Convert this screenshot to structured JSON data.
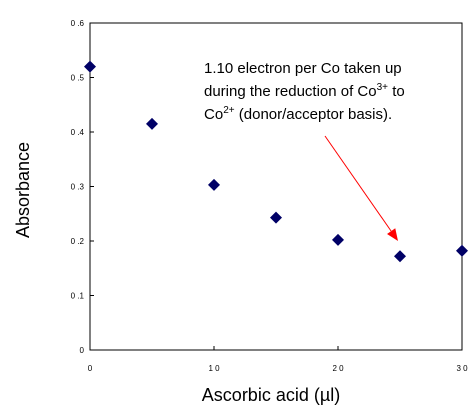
{
  "chart_data": {
    "type": "scatter",
    "title": "",
    "xlabel": "Ascorbic acid (µl)",
    "ylabel": "Absorbance",
    "xlim": [
      0,
      30
    ],
    "ylim": [
      0,
      0.6
    ],
    "x_ticks": [
      0,
      10,
      20,
      30
    ],
    "x_tick_labels": [
      "0",
      "1 0",
      "2 0",
      "3 0"
    ],
    "y_ticks": [
      0,
      0.1,
      0.2,
      0.3,
      0.4,
      0.5,
      0.6
    ],
    "y_tick_labels": [
      "0",
      "0 .1",
      "0 .2",
      "0 .3",
      "0 .4",
      "0 .5",
      "0 .6"
    ],
    "grid": false,
    "legend": "none",
    "marker": "diamond",
    "marker_color": "#000066",
    "arrow_color": "#ff0000",
    "series": [
      {
        "x": [
          0,
          5,
          10,
          15,
          20,
          25,
          30
        ],
        "y": [
          0.52,
          0.415,
          0.303,
          0.243,
          0.202,
          0.172,
          0.182
        ]
      }
    ],
    "annotation": {
      "line1": "1.10 electron per Co taken up",
      "line2_pre": "during the reduction of Co",
      "line2_sup": "3+",
      "line2_post": " to",
      "line3_pre": "Co",
      "line3_sup": "2+",
      "line3_post": " (donor/acceptor basis).",
      "target_x": 25,
      "target_y": 0.2
    }
  }
}
